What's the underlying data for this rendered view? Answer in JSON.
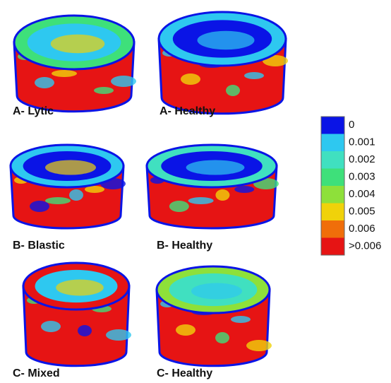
{
  "panels": [
    {
      "label": "A- Lytic"
    },
    {
      "label": "A- Healthy"
    },
    {
      "label": "B- Blastic"
    },
    {
      "label": "B- Healthy"
    },
    {
      "label": "C- Mixed"
    },
    {
      "label": "C- Healthy"
    }
  ],
  "legend": {
    "items": [
      {
        "label": "0",
        "color": "#0a14e6"
      },
      {
        "label": "0.001",
        "color": "#2ec8f0"
      },
      {
        "label": "0.002",
        "color": "#40e0c0"
      },
      {
        "label": "0.003",
        "color": "#3ee07a"
      },
      {
        "label": "0.004",
        "color": "#8ee03a"
      },
      {
        "label": "0.005",
        "color": "#f0d20a"
      },
      {
        "label": "0.006",
        "color": "#f06e0a"
      },
      {
        "label": ">0.006",
        "color": "#e61414"
      }
    ]
  }
}
